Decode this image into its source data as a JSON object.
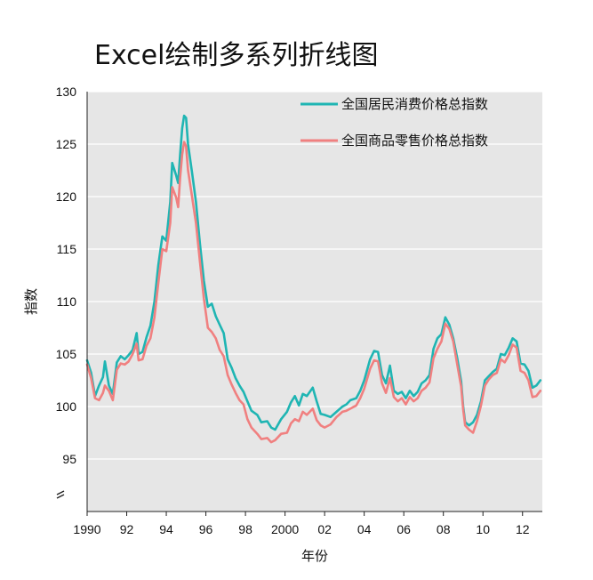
{
  "chart_data": {
    "type": "line",
    "title": "Excel绘制多系列折线图",
    "xlabel": "年份",
    "ylabel": "指数",
    "xlim": [
      1990,
      2013
    ],
    "ylim": [
      90,
      130
    ],
    "y_axis_break": true,
    "grid": true,
    "legend_position": "top-right",
    "background": "#e6e6e6",
    "x_ticks": [
      {
        "value": 1990,
        "label": "1990"
      },
      {
        "value": 1992,
        "label": "92"
      },
      {
        "value": 1994,
        "label": "94"
      },
      {
        "value": 1996,
        "label": "96"
      },
      {
        "value": 1998,
        "label": "98"
      },
      {
        "value": 2000,
        "label": "2000"
      },
      {
        "value": 2002,
        "label": "02"
      },
      {
        "value": 2004,
        "label": "04"
      },
      {
        "value": 2006,
        "label": "06"
      },
      {
        "value": 2008,
        "label": "08"
      },
      {
        "value": 2010,
        "label": "10"
      },
      {
        "value": 2012,
        "label": "12"
      }
    ],
    "y_ticks": [
      {
        "value": 95,
        "label": "95"
      },
      {
        "value": 100,
        "label": "100"
      },
      {
        "value": 105,
        "label": "105"
      },
      {
        "value": 110,
        "label": "110"
      },
      {
        "value": 115,
        "label": "115"
      },
      {
        "value": 120,
        "label": "120"
      },
      {
        "value": 125,
        "label": "125"
      },
      {
        "value": 130,
        "label": "130"
      }
    ],
    "series": [
      {
        "name": "全国居民消费价格总指数",
        "color": "#1fb5b3",
        "points": [
          [
            1990.0,
            104.4
          ],
          [
            1990.2,
            103.2
          ],
          [
            1990.4,
            101.0
          ],
          [
            1990.6,
            102.0
          ],
          [
            1990.8,
            102.8
          ],
          [
            1990.9,
            104.3
          ],
          [
            1991.1,
            102.0
          ],
          [
            1991.3,
            101.2
          ],
          [
            1991.5,
            104.2
          ],
          [
            1991.7,
            104.8
          ],
          [
            1991.9,
            104.5
          ],
          [
            1992.1,
            104.9
          ],
          [
            1992.3,
            105.4
          ],
          [
            1992.5,
            107.0
          ],
          [
            1992.6,
            105.0
          ],
          [
            1992.8,
            105.2
          ],
          [
            1993.0,
            106.6
          ],
          [
            1993.2,
            107.7
          ],
          [
            1993.4,
            110.0
          ],
          [
            1993.6,
            113.5
          ],
          [
            1993.8,
            116.2
          ],
          [
            1994.0,
            115.8
          ],
          [
            1994.2,
            119.5
          ],
          [
            1994.3,
            123.2
          ],
          [
            1994.5,
            122.0
          ],
          [
            1994.6,
            121.3
          ],
          [
            1994.7,
            124.0
          ],
          [
            1994.8,
            126.5
          ],
          [
            1994.9,
            127.7
          ],
          [
            1995.0,
            127.5
          ],
          [
            1995.1,
            125.0
          ],
          [
            1995.3,
            122.3
          ],
          [
            1995.5,
            119.5
          ],
          [
            1995.7,
            115.5
          ],
          [
            1995.9,
            112.0
          ],
          [
            1996.1,
            109.5
          ],
          [
            1996.3,
            109.8
          ],
          [
            1996.5,
            108.6
          ],
          [
            1996.7,
            107.8
          ],
          [
            1996.9,
            107.0
          ],
          [
            1997.1,
            104.5
          ],
          [
            1997.3,
            103.7
          ],
          [
            1997.5,
            102.7
          ],
          [
            1997.7,
            102.0
          ],
          [
            1997.9,
            101.4
          ],
          [
            1998.1,
            100.5
          ],
          [
            1998.3,
            99.6
          ],
          [
            1998.6,
            99.2
          ],
          [
            1998.8,
            98.5
          ],
          [
            1999.1,
            98.6
          ],
          [
            1999.3,
            98.0
          ],
          [
            1999.5,
            97.8
          ],
          [
            1999.8,
            98.8
          ],
          [
            2000.1,
            99.5
          ],
          [
            2000.3,
            100.4
          ],
          [
            2000.5,
            101.0
          ],
          [
            2000.7,
            100.1
          ],
          [
            2000.9,
            101.2
          ],
          [
            2001.1,
            101.0
          ],
          [
            2001.4,
            101.8
          ],
          [
            2001.6,
            100.5
          ],
          [
            2001.8,
            99.3
          ],
          [
            2002.0,
            99.2
          ],
          [
            2002.3,
            99.0
          ],
          [
            2002.6,
            99.5
          ],
          [
            2002.9,
            100.0
          ],
          [
            2003.1,
            100.2
          ],
          [
            2003.3,
            100.6
          ],
          [
            2003.6,
            100.8
          ],
          [
            2003.8,
            101.5
          ],
          [
            2004.0,
            102.5
          ],
          [
            2004.3,
            104.5
          ],
          [
            2004.5,
            105.3
          ],
          [
            2004.7,
            105.2
          ],
          [
            2004.9,
            103.0
          ],
          [
            2005.1,
            102.2
          ],
          [
            2005.3,
            103.9
          ],
          [
            2005.5,
            101.5
          ],
          [
            2005.7,
            101.2
          ],
          [
            2005.9,
            101.4
          ],
          [
            2006.1,
            100.8
          ],
          [
            2006.3,
            101.5
          ],
          [
            2006.5,
            101.0
          ],
          [
            2006.7,
            101.4
          ],
          [
            2006.9,
            102.2
          ],
          [
            2007.1,
            102.5
          ],
          [
            2007.3,
            103.0
          ],
          [
            2007.5,
            105.5
          ],
          [
            2007.7,
            106.5
          ],
          [
            2007.9,
            106.9
          ],
          [
            2008.1,
            108.5
          ],
          [
            2008.3,
            107.8
          ],
          [
            2008.5,
            106.5
          ],
          [
            2008.7,
            104.6
          ],
          [
            2008.9,
            102.4
          ],
          [
            2009.0,
            100.0
          ],
          [
            2009.1,
            98.5
          ],
          [
            2009.3,
            98.2
          ],
          [
            2009.5,
            98.5
          ],
          [
            2009.7,
            99.2
          ],
          [
            2009.9,
            100.5
          ],
          [
            2010.1,
            102.5
          ],
          [
            2010.3,
            102.9
          ],
          [
            2010.5,
            103.3
          ],
          [
            2010.7,
            103.6
          ],
          [
            2010.9,
            105.0
          ],
          [
            2011.1,
            104.9
          ],
          [
            2011.3,
            105.6
          ],
          [
            2011.5,
            106.5
          ],
          [
            2011.7,
            106.2
          ],
          [
            2011.9,
            104.1
          ],
          [
            2012.1,
            104.0
          ],
          [
            2012.3,
            103.4
          ],
          [
            2012.5,
            101.8
          ],
          [
            2012.7,
            102.0
          ],
          [
            2012.9,
            102.5
          ]
        ]
      },
      {
        "name": "全国商品零售价格总指数",
        "color": "#f08080",
        "points": [
          [
            1990.0,
            104.0
          ],
          [
            1990.2,
            102.7
          ],
          [
            1990.4,
            100.8
          ],
          [
            1990.6,
            100.6
          ],
          [
            1990.8,
            101.3
          ],
          [
            1990.9,
            102.0
          ],
          [
            1991.1,
            101.5
          ],
          [
            1991.3,
            100.6
          ],
          [
            1991.5,
            103.5
          ],
          [
            1991.7,
            104.1
          ],
          [
            1991.9,
            104.0
          ],
          [
            1992.1,
            104.3
          ],
          [
            1992.3,
            105.0
          ],
          [
            1992.5,
            106.0
          ],
          [
            1992.6,
            104.4
          ],
          [
            1992.8,
            104.5
          ],
          [
            1993.0,
            105.8
          ],
          [
            1993.2,
            106.5
          ],
          [
            1993.4,
            108.5
          ],
          [
            1993.6,
            111.8
          ],
          [
            1993.8,
            115.0
          ],
          [
            1994.0,
            114.8
          ],
          [
            1994.2,
            117.5
          ],
          [
            1994.3,
            120.9
          ],
          [
            1994.5,
            119.9
          ],
          [
            1994.6,
            119.0
          ],
          [
            1994.7,
            121.8
          ],
          [
            1994.8,
            124.0
          ],
          [
            1994.9,
            125.2
          ],
          [
            1995.0,
            124.8
          ],
          [
            1995.1,
            122.5
          ],
          [
            1995.3,
            120.0
          ],
          [
            1995.5,
            117.5
          ],
          [
            1995.7,
            113.8
          ],
          [
            1995.9,
            110.3
          ],
          [
            1996.1,
            107.5
          ],
          [
            1996.3,
            107.1
          ],
          [
            1996.5,
            106.5
          ],
          [
            1996.7,
            105.4
          ],
          [
            1996.9,
            104.8
          ],
          [
            1997.1,
            103.0
          ],
          [
            1997.3,
            102.1
          ],
          [
            1997.5,
            101.3
          ],
          [
            1997.7,
            100.6
          ],
          [
            1997.9,
            100.2
          ],
          [
            1998.1,
            98.8
          ],
          [
            1998.3,
            98.0
          ],
          [
            1998.6,
            97.4
          ],
          [
            1998.8,
            96.9
          ],
          [
            1999.1,
            97.0
          ],
          [
            1999.3,
            96.6
          ],
          [
            1999.5,
            96.8
          ],
          [
            1999.8,
            97.4
          ],
          [
            2000.1,
            97.5
          ],
          [
            2000.3,
            98.4
          ],
          [
            2000.5,
            98.8
          ],
          [
            2000.7,
            98.6
          ],
          [
            2000.9,
            99.5
          ],
          [
            2001.1,
            99.2
          ],
          [
            2001.4,
            99.8
          ],
          [
            2001.6,
            98.7
          ],
          [
            2001.8,
            98.2
          ],
          [
            2002.0,
            98.0
          ],
          [
            2002.3,
            98.3
          ],
          [
            2002.6,
            99.0
          ],
          [
            2002.9,
            99.5
          ],
          [
            2003.1,
            99.6
          ],
          [
            2003.3,
            99.8
          ],
          [
            2003.6,
            100.1
          ],
          [
            2003.8,
            100.8
          ],
          [
            2004.0,
            101.7
          ],
          [
            2004.3,
            103.6
          ],
          [
            2004.5,
            104.4
          ],
          [
            2004.7,
            104.3
          ],
          [
            2004.9,
            102.2
          ],
          [
            2005.1,
            101.3
          ],
          [
            2005.3,
            102.7
          ],
          [
            2005.5,
            100.9
          ],
          [
            2005.7,
            100.5
          ],
          [
            2005.9,
            100.8
          ],
          [
            2006.1,
            100.2
          ],
          [
            2006.3,
            100.9
          ],
          [
            2006.5,
            100.5
          ],
          [
            2006.7,
            100.8
          ],
          [
            2006.9,
            101.5
          ],
          [
            2007.1,
            101.8
          ],
          [
            2007.3,
            102.3
          ],
          [
            2007.5,
            104.6
          ],
          [
            2007.7,
            105.5
          ],
          [
            2007.9,
            106.2
          ],
          [
            2008.1,
            107.9
          ],
          [
            2008.3,
            107.4
          ],
          [
            2008.5,
            106.2
          ],
          [
            2008.7,
            104.0
          ],
          [
            2008.9,
            101.9
          ],
          [
            2009.0,
            99.7
          ],
          [
            2009.1,
            98.2
          ],
          [
            2009.3,
            97.8
          ],
          [
            2009.5,
            97.5
          ],
          [
            2009.7,
            98.6
          ],
          [
            2009.9,
            100.1
          ],
          [
            2010.1,
            102.0
          ],
          [
            2010.3,
            102.6
          ],
          [
            2010.5,
            103.0
          ],
          [
            2010.7,
            103.2
          ],
          [
            2010.9,
            104.5
          ],
          [
            2011.1,
            104.2
          ],
          [
            2011.3,
            104.9
          ],
          [
            2011.5,
            105.9
          ],
          [
            2011.7,
            105.6
          ],
          [
            2011.9,
            103.4
          ],
          [
            2012.1,
            103.2
          ],
          [
            2012.3,
            102.5
          ],
          [
            2012.5,
            100.9
          ],
          [
            2012.7,
            101.0
          ],
          [
            2012.9,
            101.5
          ]
        ]
      }
    ]
  }
}
